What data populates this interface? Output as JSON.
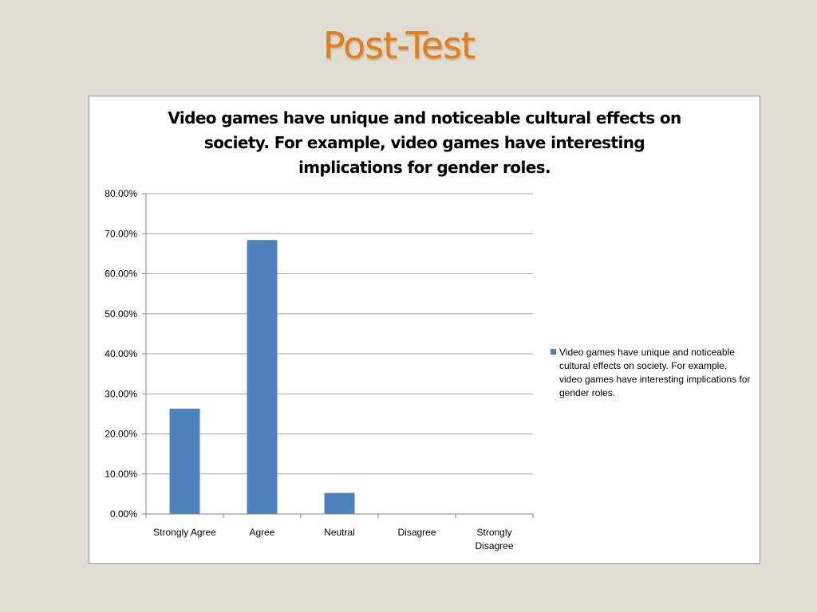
{
  "slide": {
    "title": "Post-Test"
  },
  "chart_data": {
    "type": "bar",
    "title": "Video games have unique and noticeable cultural effects on society. For example, video games have interesting implications for gender roles.",
    "categories": [
      "Strongly Agree",
      "Agree",
      "Neutral",
      "Disagree",
      "Strongly Disagree"
    ],
    "series": [
      {
        "name": "Video games have unique and noticeable cultural effects on society. For example, video games have interesting implications for gender roles.",
        "values": [
          0.2632,
          0.6842,
          0.0526,
          0,
          0
        ],
        "color": "#4f81bd"
      }
    ],
    "ylim": [
      0,
      0.8
    ],
    "yticks": [
      0,
      0.1,
      0.2,
      0.3,
      0.4,
      0.5,
      0.6,
      0.7,
      0.8
    ],
    "ytick_labels": [
      "0.00%",
      "10.00%",
      "20.00%",
      "30.00%",
      "40.00%",
      "50.00%",
      "60.00%",
      "70.00%",
      "80.00%"
    ],
    "xlabel": "",
    "ylabel": "",
    "grid": true,
    "legend_position": "right"
  }
}
